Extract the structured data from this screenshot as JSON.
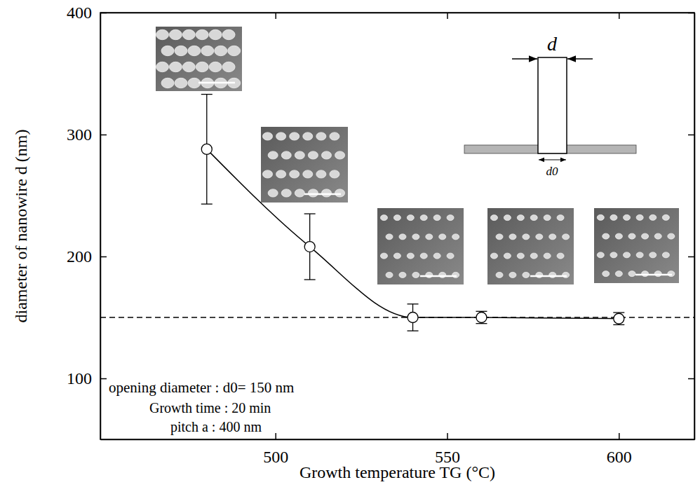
{
  "chart_data": {
    "type": "line",
    "x": [
      480,
      510,
      540,
      560,
      600
    ],
    "series": [
      {
        "values": [
          288,
          208,
          150,
          150,
          149
        ],
        "errors": [
          45,
          27,
          11,
          5,
          5
        ],
        "color": "#000000",
        "marker": "open-circle",
        "line_style": "solid"
      }
    ],
    "xlim": [
      449,
      622
    ],
    "xticks": [
      500,
      550,
      600
    ],
    "ylim": [
      50,
      400
    ],
    "yticks": [
      100,
      200,
      300,
      400
    ],
    "x_label": "Growth temperature TG (°C)",
    "y_label": "diameter of nanowire d (nm)",
    "reference_line": {
      "value": 150,
      "label": "opening diameter : d0= 150 nm",
      "line_style": "dashed"
    },
    "annotations": [
      "Growth time : 20 min",
      "pitch a : 400 nm",
      "d",
      "d0"
    ]
  }
}
